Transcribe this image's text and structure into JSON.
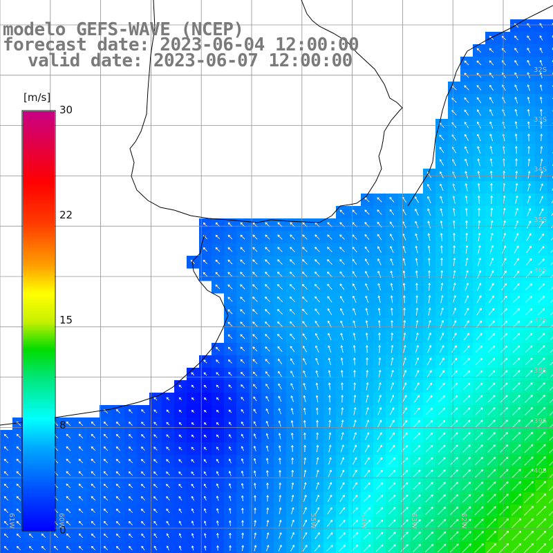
{
  "title": {
    "model": "modelo GEFS-WAVE (NCEP)",
    "forecast": "forecast date: 2023-06-04 12:00:00",
    "valid": "valid date: 2023-06-07 12:00:00"
  },
  "colorbar": {
    "unit": "[m/s]",
    "ticks": [
      "30",
      "22",
      "15",
      "8",
      "0"
    ],
    "tick_values": [
      30,
      22,
      15,
      8,
      0
    ],
    "range": [
      0,
      30
    ],
    "colors": [
      "#0000ff",
      "#00b4ff",
      "#00ffff",
      "#00e000",
      "#ffff00",
      "#ff8000",
      "#ff0000",
      "#c80080"
    ]
  },
  "lat_labels": [
    "32S",
    "33S",
    "34S",
    "35S",
    "36S",
    "37S",
    "38S",
    "39S",
    "40S"
  ],
  "lon_labels": [
    "61W",
    "60W",
    "55W",
    "54W",
    "53W",
    "52W"
  ],
  "colors": {
    "land": "#ffffff",
    "coast": "#000000",
    "grid": "#909090",
    "title": "#7a7a7a"
  }
}
